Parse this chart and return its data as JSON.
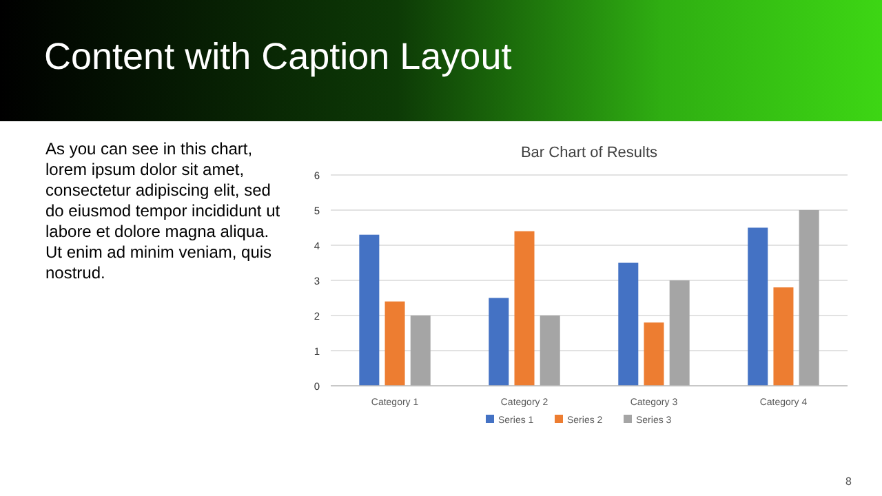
{
  "chart_data": {
    "type": "bar",
    "title": "Bar Chart of Results",
    "annotations": [
      "Content with Caption Layout",
      "As you can see in this chart, lorem ipsum dolor sit amet, consectetur adipiscing elit, sed do eiusmod tempor incididunt ut labore et dolore magna aliqua. Ut enim ad minim veniam, quis nostrud.",
      "8"
    ],
    "categories": [
      "Category 1",
      "Category 2",
      "Category 3",
      "Category 4"
    ],
    "series": [
      {
        "name": "Series 1",
        "color": "#4472c4",
        "values": [
          4.3,
          2.5,
          3.5,
          4.5
        ]
      },
      {
        "name": "Series 2",
        "color": "#ed7d31",
        "values": [
          2.4,
          4.4,
          1.8,
          2.8
        ]
      },
      {
        "name": "Series 3",
        "color": "#a5a5a5",
        "values": [
          2,
          2,
          3,
          5
        ]
      }
    ],
    "ylim": [
      0,
      6
    ],
    "yticks": [
      0,
      1,
      2,
      3,
      4,
      5,
      6
    ],
    "grid": "y",
    "legend": "bottom"
  }
}
